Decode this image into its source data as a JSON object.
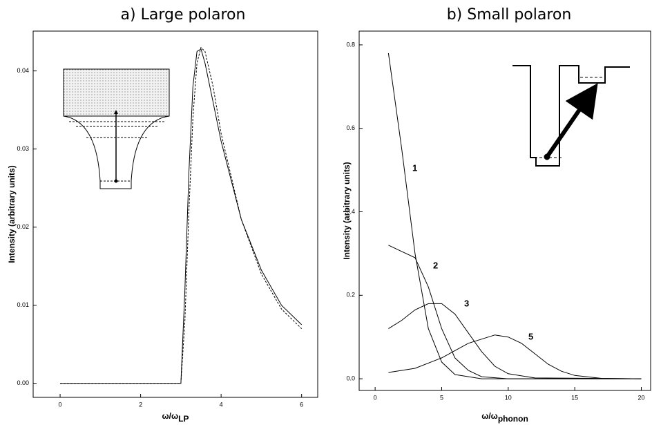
{
  "chart_data": [
    {
      "type": "line",
      "title": "a) Large polaron",
      "xlabel": "ω/ω",
      "xlabel_sub": "LP",
      "ylabel": "Intensity (arbitrary units)",
      "xlim": [
        -0.67,
        6.4
      ],
      "ylim": [
        -0.0018,
        0.0451
      ],
      "xticks": [
        0,
        2,
        4,
        6
      ],
      "yticks": [
        {
          "value": 0,
          "label": "0.00"
        },
        {
          "value": 0.01,
          "label": "0.01"
        },
        {
          "value": 0.02,
          "label": "0.02"
        },
        {
          "value": 0.03,
          "label": "0.03"
        },
        {
          "value": 0.04,
          "label": "0.04"
        }
      ],
      "series": [
        {
          "color": "#000000",
          "style": "solid",
          "x": [
            0,
            3,
            3.1,
            3.2,
            3.3,
            3.4,
            3.5,
            3.6,
            3.8,
            4,
            4.5,
            5,
            5.5,
            6
          ],
          "values": [
            0,
            0,
            0.012,
            0.027,
            0.038,
            0.0425,
            0.0428,
            0.041,
            0.036,
            0.031,
            0.021,
            0.0145,
            0.01,
            0.0075
          ]
        },
        {
          "color": "#000000",
          "style": "dashed",
          "x": [
            0,
            3,
            3.1,
            3.2,
            3.3,
            3.4,
            3.5,
            3.6,
            3.8,
            4,
            4.5,
            5,
            5.5,
            6
          ],
          "values": [
            0,
            0,
            0.008,
            0.022,
            0.034,
            0.041,
            0.043,
            0.0425,
            0.038,
            0.032,
            0.021,
            0.014,
            0.0095,
            0.007
          ]
        }
      ]
    },
    {
      "type": "line",
      "title": "b) Small polaron",
      "xlabel": "ω/ω",
      "xlabel_sub": "phonon",
      "ylabel": "Intensity (arbitrary units)",
      "xlim": [
        -1.2,
        20.7
      ],
      "ylim": [
        -0.028,
        0.833
      ],
      "xticks": [
        0,
        5,
        10,
        15,
        20
      ],
      "yticks": [
        {
          "value": 0,
          "label": "0.0"
        },
        {
          "value": 0.2,
          "label": "0.2"
        },
        {
          "value": 0.4,
          "label": "0.4"
        },
        {
          "value": 0.6,
          "label": "0.6"
        },
        {
          "value": 0.8,
          "label": "0.8"
        }
      ],
      "series": [
        {
          "name": "1",
          "color": "#000000",
          "style": "solid",
          "x": [
            1,
            2,
            3,
            4,
            5,
            6,
            8,
            20
          ],
          "values": [
            0.78,
            0.55,
            0.3,
            0.12,
            0.04,
            0.01,
            0,
            0
          ]
        },
        {
          "name": "2",
          "color": "#000000",
          "style": "solid",
          "x": [
            1,
            2,
            3,
            4,
            5,
            6,
            7,
            8,
            10,
            20
          ],
          "values": [
            0.32,
            0.305,
            0.29,
            0.22,
            0.12,
            0.05,
            0.02,
            0.005,
            0,
            0
          ]
        },
        {
          "name": "3",
          "color": "#000000",
          "style": "solid",
          "x": [
            1,
            2,
            3,
            4,
            5,
            6,
            7,
            8,
            9,
            10,
            12,
            20
          ],
          "values": [
            0.12,
            0.14,
            0.165,
            0.18,
            0.18,
            0.155,
            0.11,
            0.065,
            0.03,
            0.012,
            0.002,
            0
          ]
        },
        {
          "name": "5",
          "color": "#000000",
          "style": "solid",
          "x": [
            1,
            3,
            5,
            7,
            9,
            10,
            11,
            12,
            13,
            14,
            15,
            17,
            20
          ],
          "values": [
            0.015,
            0.025,
            0.05,
            0.085,
            0.105,
            0.1,
            0.085,
            0.06,
            0.035,
            0.018,
            0.008,
            0.001,
            0
          ]
        }
      ]
    }
  ]
}
